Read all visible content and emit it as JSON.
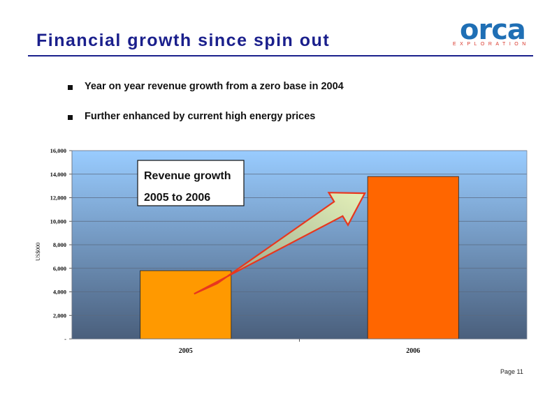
{
  "slide": {
    "title": "Financial growth since spin out",
    "bullets": [
      "Year on year revenue growth from a zero base in 2004",
      "Further enhanced by current high energy prices"
    ],
    "page_label": "Page 11"
  },
  "logo": {
    "word": "orca",
    "sub": "EXPLORATION",
    "colors": {
      "word": "#1f6fb5",
      "sub": "#d9362a"
    }
  },
  "chart_data": {
    "type": "bar",
    "categories": [
      "2005",
      "2006"
    ],
    "values": [
      5800,
      13800
    ],
    "ylabel": "US$000",
    "ylim": [
      0,
      16000
    ],
    "yticks": [
      0,
      2000,
      4000,
      6000,
      8000,
      10000,
      12000,
      14000,
      16000
    ],
    "ytick_labels": [
      "-",
      "2,000",
      "4,000",
      "6,000",
      "8,000",
      "10,000",
      "12,000",
      "14,000",
      "16,000"
    ],
    "grid": true,
    "bar_colors": [
      "#ff9900",
      "#ff6600"
    ],
    "annotation": {
      "lines": [
        "Revenue growth",
        "2005 to 2006"
      ]
    },
    "colors": {
      "plot_top": "#99ccff",
      "plot_bottom": "#4a5f7c",
      "arrow_fill_start": "#8a9b86",
      "arrow_fill_end": "#e4f0b8",
      "arrow_stroke": "#e8371e"
    }
  }
}
